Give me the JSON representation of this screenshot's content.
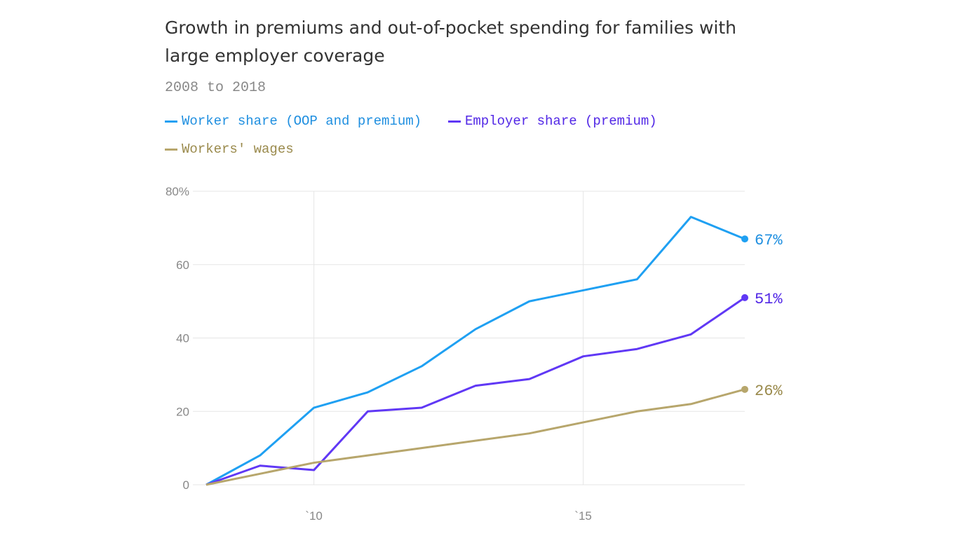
{
  "chart_data": {
    "type": "line",
    "title": "Growth in premiums and out-of-pocket spending for families with large employer coverage",
    "subtitle": "2008 to 2018",
    "x": [
      2008,
      2009,
      2010,
      2011,
      2012,
      2013,
      2014,
      2015,
      2016,
      2017,
      2018
    ],
    "x_tick_values": [
      2010,
      2015
    ],
    "x_tick_labels": [
      "`10",
      "`15"
    ],
    "xlim": [
      2008,
      2018
    ],
    "y_tick_values": [
      0,
      20,
      40,
      60,
      80
    ],
    "y_tick_labels": [
      "0",
      "20",
      "40",
      "60",
      "80%"
    ],
    "ylim": [
      0,
      80
    ],
    "grid": true,
    "legend_position": "top-left",
    "series": [
      {
        "name": "Worker share (OOP and premium)",
        "color": "#1fa0f2",
        "label_color": "#1f8fe0",
        "end_label": "67%",
        "values": [
          0,
          8,
          21,
          25.2,
          32.3,
          42.4,
          50,
          53,
          56,
          73,
          67
        ]
      },
      {
        "name": "Employer share (premium)",
        "color": "#6038f5",
        "label_color": "#5228e6",
        "end_label": "51%",
        "values": [
          0,
          5.2,
          4,
          20,
          21,
          27,
          28.8,
          35,
          37,
          41,
          51
        ]
      },
      {
        "name": "Workers' wages",
        "color": "#b7a66c",
        "label_color": "#9a8a4c",
        "end_label": "26%",
        "values": [
          0,
          3,
          6,
          8,
          10,
          12,
          14,
          17,
          20,
          22,
          26
        ]
      }
    ]
  }
}
